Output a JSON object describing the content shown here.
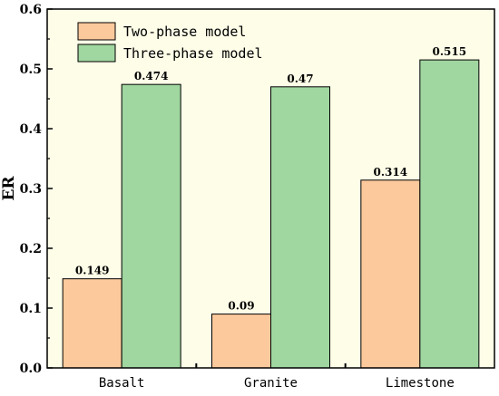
{
  "chart_data": {
    "type": "bar",
    "title": "",
    "xlabel": "",
    "ylabel": "ER",
    "ylim": [
      0,
      0.6
    ],
    "yticks": [
      "0.0",
      "0.1",
      "0.2",
      "0.3",
      "0.4",
      "0.5",
      "0.6"
    ],
    "categories": [
      "Basalt",
      "Granite",
      "Limestone"
    ],
    "series": [
      {
        "name": "Two-phase model",
        "values": [
          0.149,
          0.09,
          0.314
        ],
        "labels": [
          "0.149",
          "0.09",
          "0.314"
        ],
        "color": "#fbc99c"
      },
      {
        "name": "Three-phase model",
        "values": [
          0.474,
          0.47,
          0.515
        ],
        "labels": [
          "0.474",
          "0.47",
          "0.515"
        ],
        "color": "#a0d6a0"
      }
    ],
    "plot_background": "#fefde8",
    "grid": false,
    "legend_position": "top-left"
  }
}
